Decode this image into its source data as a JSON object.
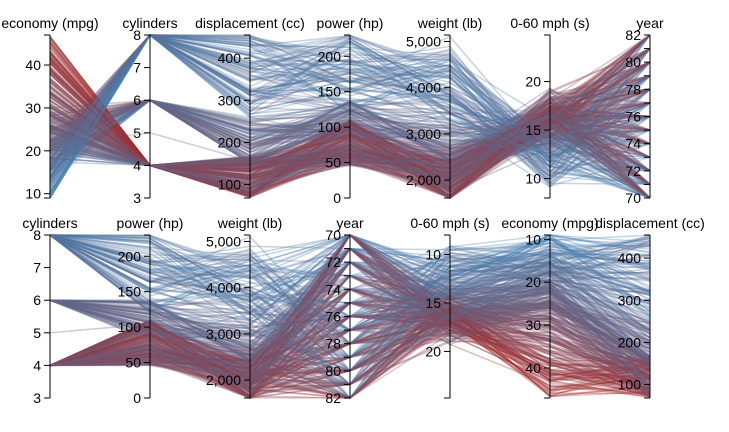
{
  "chart_data": [
    {
      "type": "parallel_coordinates",
      "color_by": "economy (mpg)",
      "color_range": [
        "#4682b4",
        "#a52a2a"
      ],
      "line_opacity": 0.32,
      "axes": [
        {
          "name": "economy (mpg)",
          "domain": [
            9,
            47
          ],
          "ticks": [
            10,
            20,
            30,
            40
          ],
          "tick_labels": [
            "10",
            "20",
            "30",
            "40"
          ]
        },
        {
          "name": "cylinders",
          "domain": [
            3,
            8
          ],
          "ticks": [
            3,
            4,
            5,
            6,
            7,
            8
          ],
          "tick_labels": [
            "3",
            "4",
            "5",
            "6",
            "7",
            "8"
          ]
        },
        {
          "name": "displacement (cc)",
          "domain": [
            68,
            455
          ],
          "ticks": [
            100,
            200,
            300,
            400
          ],
          "tick_labels": [
            "100",
            "200",
            "300",
            "400"
          ]
        },
        {
          "name": "power (hp)",
          "domain": [
            0,
            230
          ],
          "ticks": [
            0,
            50,
            100,
            150,
            200
          ],
          "tick_labels": [
            "0",
            "50",
            "100",
            "150",
            "200"
          ]
        },
        {
          "name": "weight (lb)",
          "domain": [
            1613,
            5140
          ],
          "ticks": [
            2000,
            3000,
            4000,
            5000
          ],
          "tick_labels": [
            "2,000",
            "3,000",
            "4,000",
            "5,000"
          ]
        },
        {
          "name": "0-60 mph (s)",
          "domain": [
            8,
            24.8
          ],
          "ticks": [
            10,
            15,
            20
          ],
          "tick_labels": [
            "10",
            "15",
            "20"
          ]
        },
        {
          "name": "year",
          "domain": [
            70,
            82
          ],
          "ticks": [
            70,
            71,
            72,
            73,
            74,
            75,
            76,
            77,
            78,
            79,
            80,
            81,
            82
          ],
          "tick_labels": [
            "70",
            "",
            "72",
            "",
            "74",
            "",
            "76",
            "",
            "78",
            "",
            "80",
            "",
            "82"
          ]
        }
      ]
    },
    {
      "type": "parallel_coordinates",
      "color_by": "economy (mpg)",
      "color_range": [
        "#4682b4",
        "#a52a2a"
      ],
      "line_opacity": 0.32,
      "axes": [
        {
          "name": "cylinders",
          "domain": [
            3,
            8
          ],
          "ticks": [
            3,
            4,
            5,
            6,
            7,
            8
          ],
          "tick_labels": [
            "3",
            "4",
            "5",
            "6",
            "7",
            "8"
          ]
        },
        {
          "name": "power (hp)",
          "domain": [
            0,
            230
          ],
          "ticks": [
            0,
            50,
            100,
            150,
            200
          ],
          "tick_labels": [
            "0",
            "50",
            "100",
            "150",
            "200"
          ]
        },
        {
          "name": "weight (lb)",
          "domain": [
            1613,
            5140
          ],
          "ticks": [
            2000,
            3000,
            4000,
            5000
          ],
          "tick_labels": [
            "2,000",
            "3,000",
            "4,000",
            "5,000"
          ]
        },
        {
          "name": "year",
          "domain": [
            82,
            70
          ],
          "ticks": [
            70,
            71,
            72,
            73,
            74,
            75,
            76,
            77,
            78,
            79,
            80,
            81,
            82
          ],
          "tick_labels": [
            "70",
            "",
            "72",
            "",
            "74",
            "",
            "76",
            "",
            "78",
            "",
            "80",
            "",
            "82"
          ]
        },
        {
          "name": "0-60 mph (s)",
          "domain": [
            24.8,
            8
          ],
          "ticks": [
            10,
            15,
            20
          ],
          "tick_labels": [
            "10",
            "15",
            "20"
          ]
        },
        {
          "name": "economy (mpg)",
          "domain": [
            47,
            9
          ],
          "ticks": [
            10,
            20,
            30,
            40
          ],
          "tick_labels": [
            "10",
            "20",
            "30",
            "40"
          ]
        },
        {
          "name": "displacement (cc)",
          "domain": [
            68,
            455
          ],
          "ticks": [
            100,
            200,
            300,
            400
          ],
          "tick_labels": [
            "100",
            "200",
            "300",
            "400"
          ]
        }
      ]
    }
  ]
}
